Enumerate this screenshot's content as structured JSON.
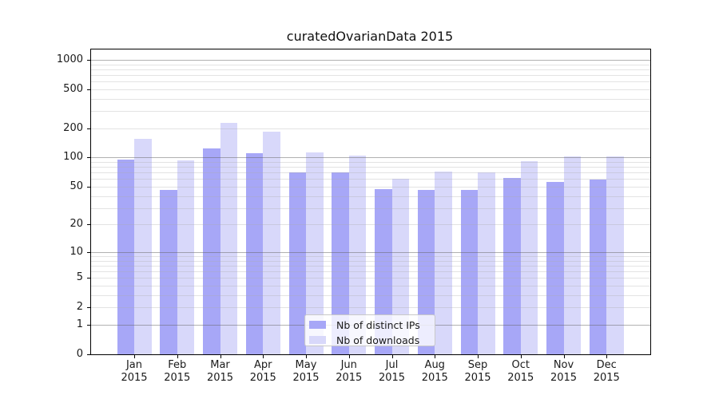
{
  "chart_data": {
    "type": "bar",
    "title": "curatedOvarianData 2015",
    "categories": [
      "Jan",
      "Feb",
      "Mar",
      "Apr",
      "May",
      "Jun",
      "Jul",
      "Aug",
      "Sep",
      "Oct",
      "Nov",
      "Dec"
    ],
    "year_label": "2015",
    "series": [
      {
        "name": "Nb of distinct IPs",
        "color": "#a7a7f7",
        "values": [
          95,
          46,
          125,
          110,
          71,
          71,
          47,
          46,
          46,
          62,
          56,
          59
        ]
      },
      {
        "name": "Nb of downloads",
        "color": "#d8d8fa",
        "values": [
          155,
          93,
          225,
          185,
          113,
          105,
          61,
          72,
          71,
          92,
          103,
          102
        ]
      }
    ],
    "y_axis": {
      "scale": "log1p",
      "tick_values": [
        0,
        1,
        2,
        5,
        10,
        20,
        50,
        100,
        200,
        500,
        1000
      ],
      "major_grid_values": [
        1,
        10,
        100,
        1000
      ],
      "ylim_top": 1275
    },
    "x_axis": {
      "label_line2": "2015"
    },
    "legend": {
      "position": "bottom-center",
      "entries": [
        "Nb of distinct IPs",
        "Nb of downloads"
      ]
    },
    "grid": {
      "major_color": "rgba(100,100,100,0.50)",
      "minor_color": "rgba(170,170,170,0.33)"
    },
    "frame_color": "#000000",
    "background": "#ffffff"
  }
}
